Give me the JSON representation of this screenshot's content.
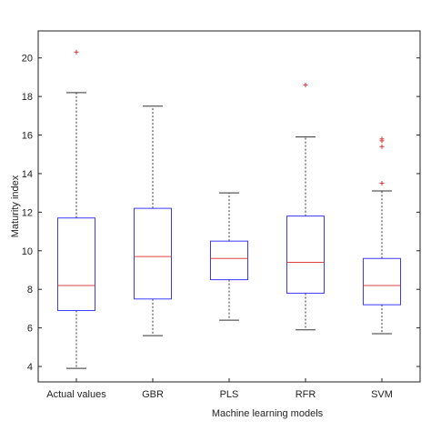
{
  "chart_data": {
    "type": "box",
    "title": "",
    "xlabel": "Machine learning models",
    "ylabel": "Maturity index",
    "ylim": [
      3.2,
      21.4
    ],
    "yticks": [
      4,
      6,
      8,
      10,
      12,
      14,
      16,
      18,
      20
    ],
    "grid": false,
    "categories": [
      "Actual values",
      "GBR",
      "PLS",
      "RFR",
      "SVM"
    ],
    "boxes": [
      {
        "name": "Actual values",
        "whisker_low": 3.9,
        "q1": 6.9,
        "median": 8.2,
        "q3": 11.7,
        "whisker_high": 18.2,
        "outliers": [
          20.3
        ]
      },
      {
        "name": "GBR",
        "whisker_low": 5.6,
        "q1": 7.5,
        "median": 9.7,
        "q3": 12.2,
        "whisker_high": 17.5,
        "outliers": []
      },
      {
        "name": "PLS",
        "whisker_low": 6.4,
        "q1": 8.5,
        "median": 9.6,
        "q3": 10.5,
        "whisker_high": 13.0,
        "outliers": []
      },
      {
        "name": "RFR",
        "whisker_low": 5.9,
        "q1": 7.8,
        "median": 9.4,
        "q3": 11.8,
        "whisker_high": 15.9,
        "outliers": [
          18.6
        ]
      },
      {
        "name": "SVM",
        "whisker_low": 5.7,
        "q1": 7.2,
        "median": 8.2,
        "q3": 9.6,
        "whisker_high": 13.1,
        "outliers": [
          13.5,
          15.4,
          15.7,
          15.8
        ]
      }
    ],
    "colors": {
      "box": "#3a3aff",
      "median": "#e04040",
      "whisker": "#333333",
      "outlier": "#e03030",
      "axis": "#222222"
    }
  }
}
